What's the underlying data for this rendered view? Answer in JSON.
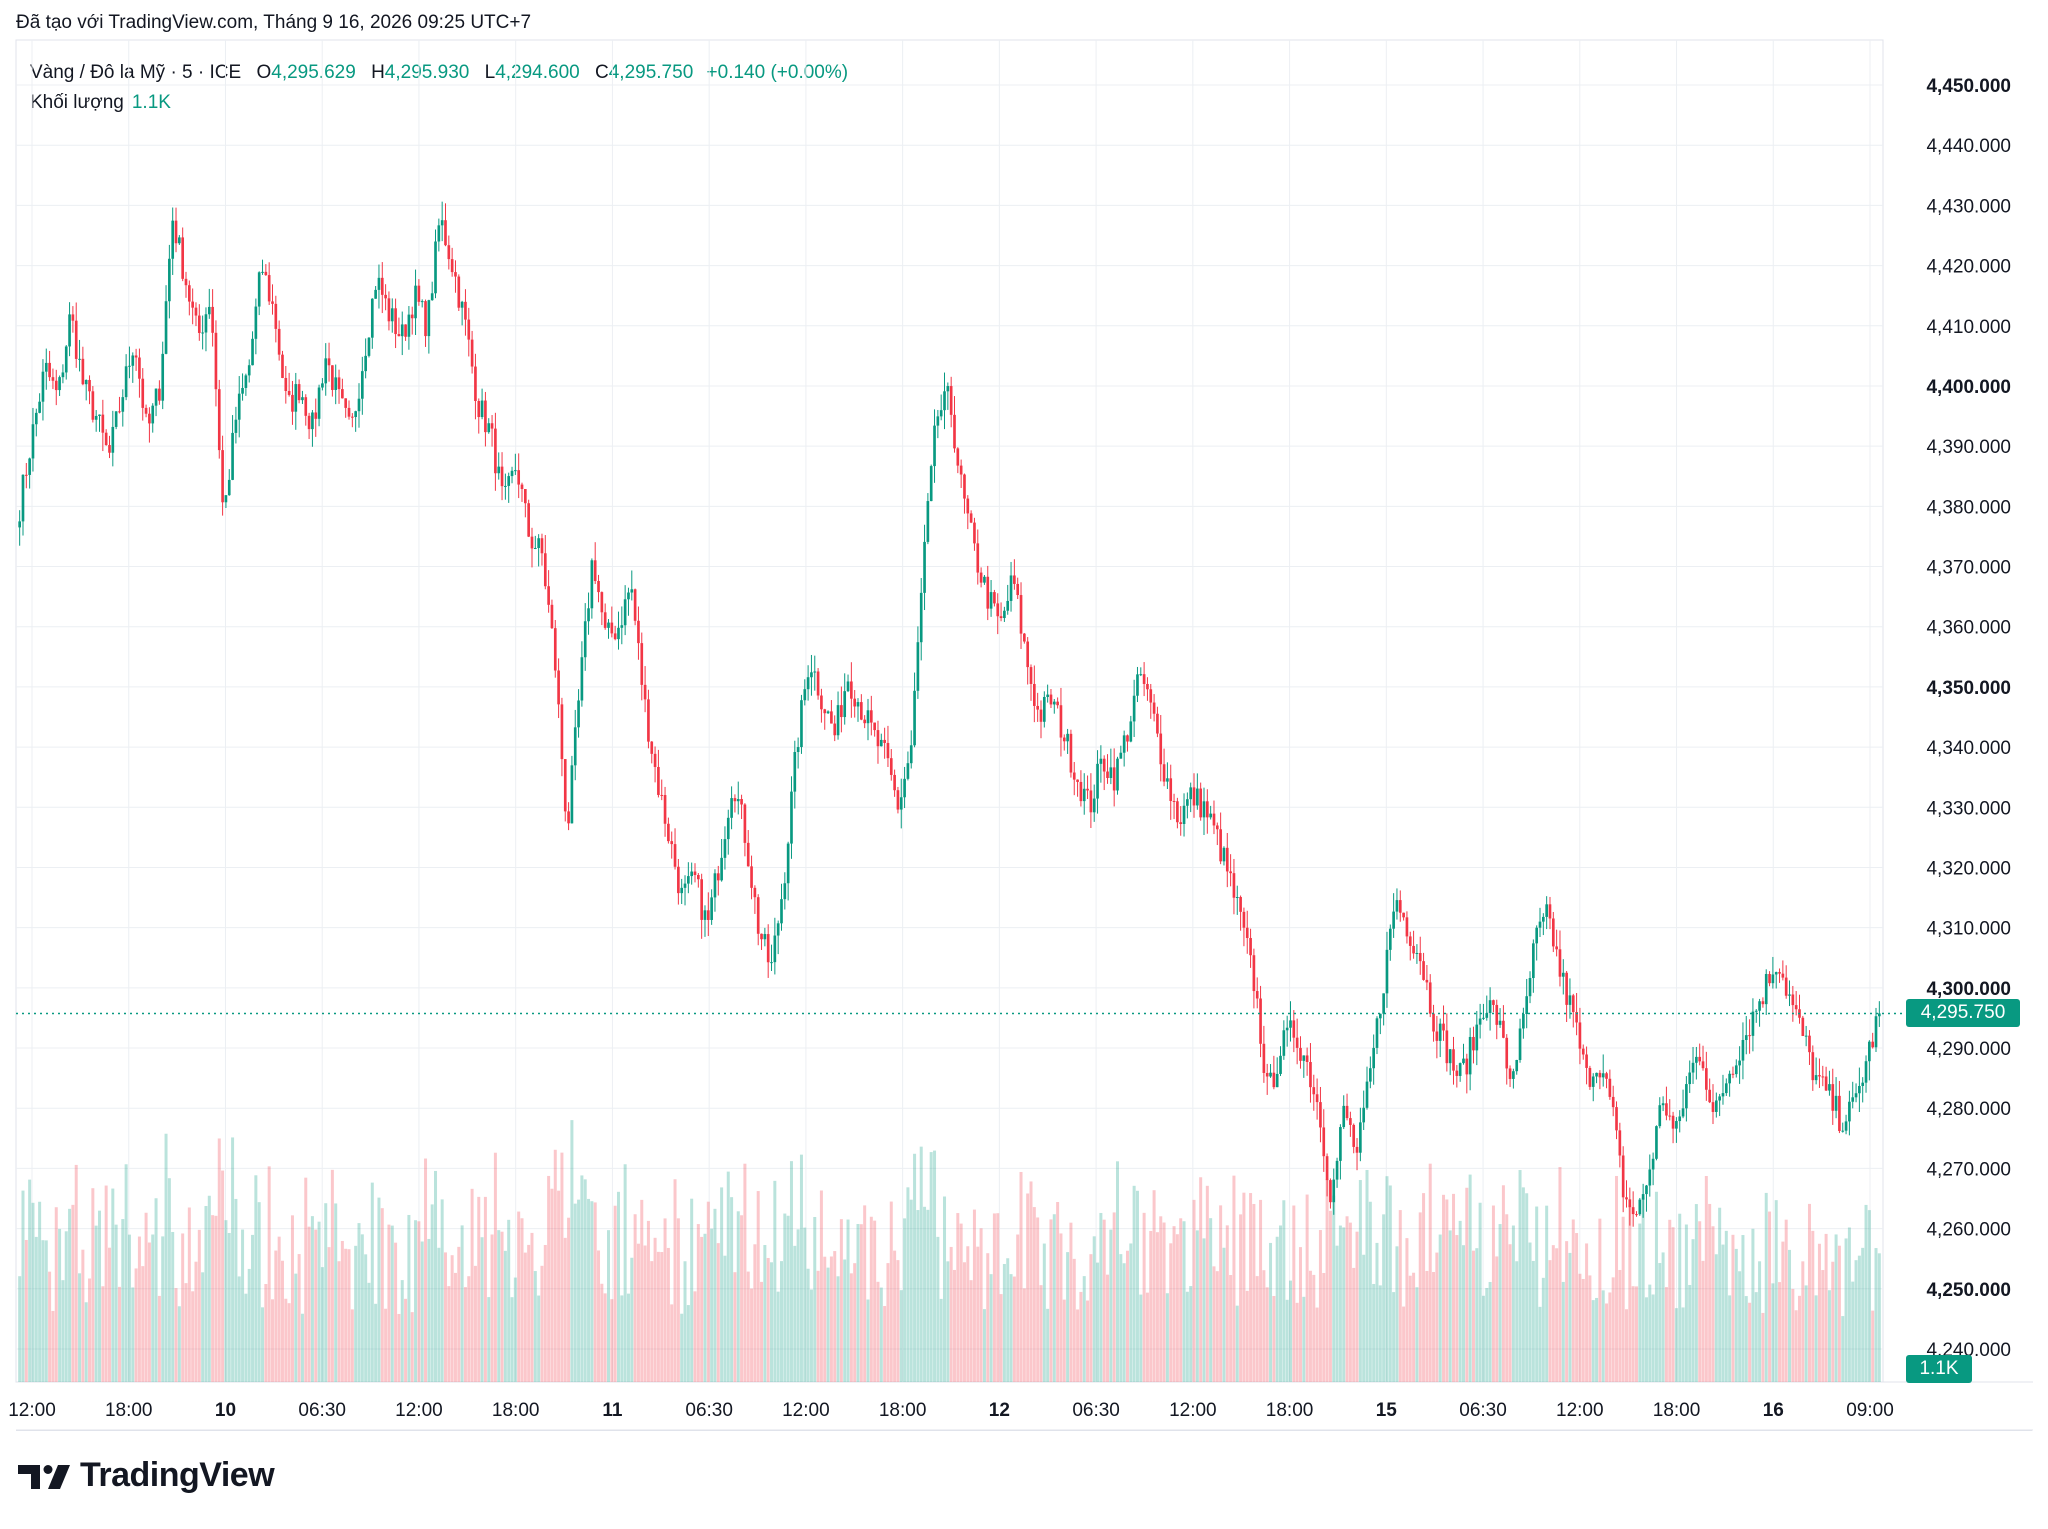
{
  "caption": "Đã tạo với TradingView.com, Tháng 9 16, 2026 09:25 UTC+7",
  "legend": {
    "symbol": "Vàng / Đô la Mỹ · 5 · ICE",
    "o_label": "O",
    "o_value": "4,295.629",
    "h_label": "H",
    "h_value": "4,295.930",
    "l_label": "L",
    "l_value": "4,294.600",
    "c_label": "C",
    "c_value": "4,295.750",
    "change": "+0.140 (+0.00%)",
    "volume_label": "Khối lượng",
    "volume_value": "1.1K"
  },
  "price_tag": "4,295.750",
  "volume_tag": "1.1K",
  "brand": "TradingView",
  "colors": {
    "up": "#089981",
    "down": "#f23645",
    "grid": "#e9ecf1",
    "text": "#131722"
  },
  "chart_data": {
    "type": "candlestick",
    "interval": "5 min",
    "y_axis": {
      "min": 4240,
      "max": 4450,
      "ticks": [
        "4,240.000",
        "4,250.000",
        "4,260.000",
        "4,270.000",
        "4,280.000",
        "4,290.000",
        "4,300.000",
        "4,310.000",
        "4,320.000",
        "4,330.000",
        "4,340.000",
        "4,350.000",
        "4,360.000",
        "4,370.000",
        "4,380.000",
        "4,390.000",
        "4,400.000",
        "4,410.000",
        "4,420.000",
        "4,430.000",
        "4,440.000",
        "4,450.000"
      ],
      "bold_ticks": [
        "4,250.000",
        "4,300.000",
        "4,350.000",
        "4,400.000",
        "4,450.000"
      ]
    },
    "x_axis": {
      "ticks": [
        {
          "label": "12:00",
          "bold": false
        },
        {
          "label": "18:00",
          "bold": false
        },
        {
          "label": "10",
          "bold": true
        },
        {
          "label": "06:30",
          "bold": false
        },
        {
          "label": "12:00",
          "bold": false
        },
        {
          "label": "18:00",
          "bold": false
        },
        {
          "label": "11",
          "bold": true
        },
        {
          "label": "06:30",
          "bold": false
        },
        {
          "label": "12:00",
          "bold": false
        },
        {
          "label": "18:00",
          "bold": false
        },
        {
          "label": "12",
          "bold": true
        },
        {
          "label": "06:30",
          "bold": false
        },
        {
          "label": "12:00",
          "bold": false
        },
        {
          "label": "18:00",
          "bold": false
        },
        {
          "label": "15",
          "bold": true
        },
        {
          "label": "06:30",
          "bold": false
        },
        {
          "label": "12:00",
          "bold": false
        },
        {
          "label": "18:00",
          "bold": false
        },
        {
          "label": "16",
          "bold": true
        },
        {
          "label": "09:00",
          "bold": false
        }
      ]
    },
    "last_price": 4295.75,
    "close_path": [
      4380,
      4392,
      4403,
      4398,
      4412,
      4400,
      4395,
      4388,
      4398,
      4408,
      4392,
      4400,
      4428,
      4418,
      4408,
      4415,
      4378,
      4395,
      4403,
      4420,
      4412,
      4396,
      4400,
      4393,
      4405,
      4398,
      4392,
      4405,
      4418,
      4412,
      4408,
      4415,
      4410,
      4428,
      4420,
      4410,
      4397,
      4392,
      4380,
      4387,
      4375,
      4372,
      4355,
      4326,
      4350,
      4372,
      4358,
      4360,
      4367,
      4348,
      4335,
      4325,
      4315,
      4318,
      4310,
      4322,
      4335,
      4325,
      4310,
      4303,
      4318,
      4340,
      4355,
      4348,
      4342,
      4352,
      4347,
      4342,
      4338,
      4330,
      4340,
      4372,
      4395,
      4398,
      4382,
      4372,
      4365,
      4360,
      4368,
      4355,
      4345,
      4348,
      4342,
      4335,
      4330,
      4338,
      4335,
      4343,
      4352,
      4345,
      4335,
      4328,
      4332,
      4330,
      4325,
      4318,
      4310,
      4300,
      4282,
      4290,
      4293,
      4288,
      4280,
      4265,
      4280,
      4272,
      4285,
      4300,
      4315,
      4310,
      4305,
      4295,
      4290,
      4285,
      4290,
      4298,
      4295,
      4285,
      4293,
      4308,
      4312,
      4302,
      4295,
      4285,
      4288,
      4280,
      4265,
      4262,
      4270,
      4282,
      4275,
      4285,
      4290,
      4278,
      4285,
      4290,
      4295,
      4300,
      4305,
      4298,
      4292,
      4285,
      4282,
      4278,
      4280,
      4288,
      4295.75
    ],
    "volume_range": [
      0,
      1600
    ]
  }
}
